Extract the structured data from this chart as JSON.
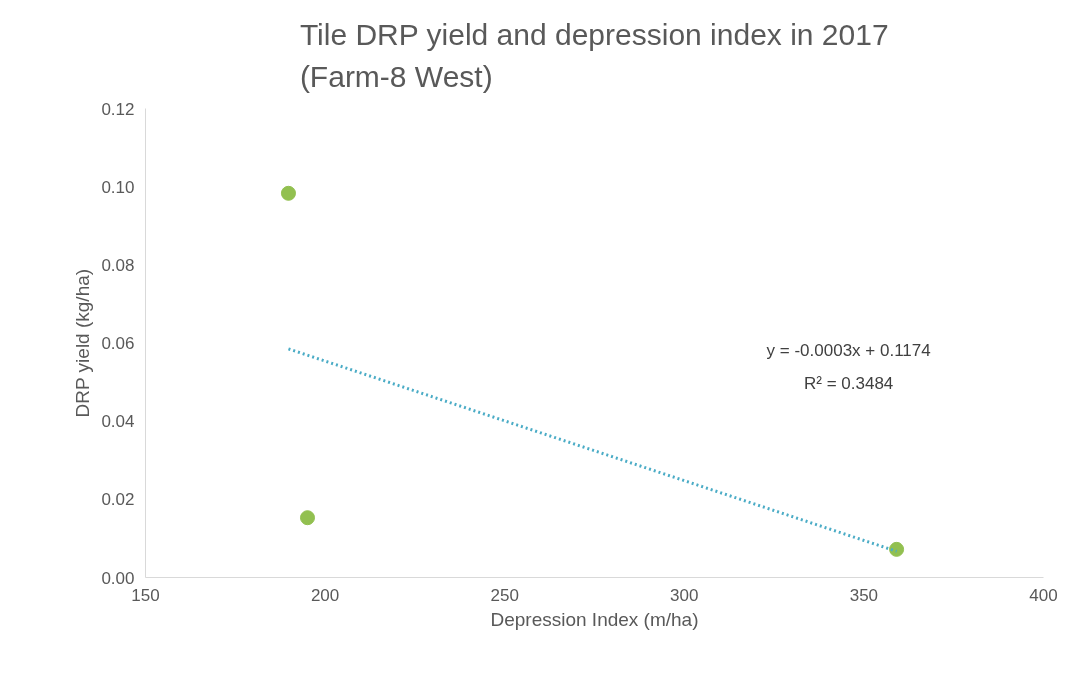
{
  "chart_data": {
    "type": "scatter",
    "title": "Tile DRP yield and depression index in 2017 (Farm-8 West)",
    "xlabel": "Depression Index (m/ha)",
    "ylabel": "DRP yield (kg/ha)",
    "xlim": [
      150,
      400
    ],
    "xticks": [
      150,
      200,
      250,
      300,
      350,
      400
    ],
    "ylim": [
      0,
      0.12
    ],
    "yticks": [
      {
        "value": 0,
        "label": "0.00"
      },
      {
        "value": 0.02,
        "label": "0.02"
      },
      {
        "value": 0.04,
        "label": "0.04"
      },
      {
        "value": 0.06,
        "label": "0.06"
      },
      {
        "value": 0.08,
        "label": "0.08"
      },
      {
        "value": 0.1,
        "label": "0.10"
      },
      {
        "value": 0.12,
        "label": "0.12"
      }
    ],
    "grid": false,
    "marker": "circle",
    "series": [
      {
        "color": "#92c050",
        "x": [
          189.8,
          195.1,
          359.1
        ],
        "values": [
          0.0983,
          0.0153,
          0.0072
        ]
      },
      {
        "type": "line",
        "color": "#4bacc6",
        "line_style": "dotted",
        "marker": "none",
        "x": [
          189.8,
          359.1
        ],
        "values": [
          0.0585,
          0.0067
        ]
      }
    ],
    "annotations": [
      "y = -0.0003x + 0.1174",
      "R² = 0.3484"
    ]
  }
}
